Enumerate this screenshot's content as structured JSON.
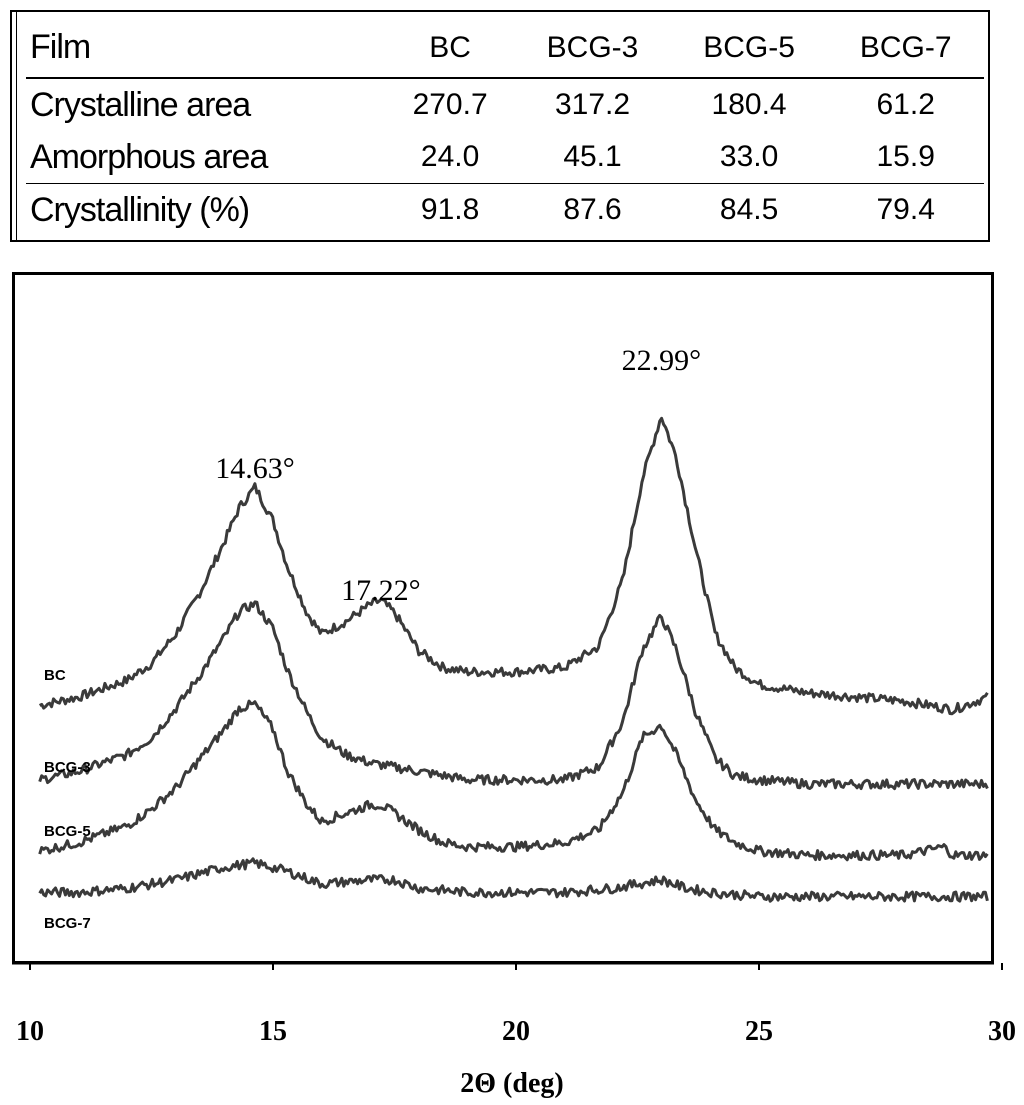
{
  "table": {
    "header": [
      "Film",
      "BC",
      "BCG-3",
      "BCG-5",
      "BCG-7"
    ],
    "rows": [
      {
        "label": "Crystalline area",
        "values": [
          "270.7",
          "317.2",
          "180.4",
          "61.2"
        ]
      },
      {
        "label": "Amorphous area",
        "values": [
          "24.0",
          "45.1",
          "33.0",
          "15.9"
        ]
      },
      {
        "label": "Crystallinity (%)",
        "values": [
          "91.8",
          "87.6",
          "84.5",
          "79.4"
        ]
      }
    ]
  },
  "chart_data": {
    "type": "line",
    "xlabel": "2Θ (deg)",
    "ylabel": "",
    "xlim": [
      10,
      30
    ],
    "x_ticks": [
      "10",
      "15",
      "20",
      "25",
      "30"
    ],
    "grid": false,
    "annotations": [
      {
        "text": "14.63°",
        "x": 14.63
      },
      {
        "text": "17.22°",
        "x": 17.22
      },
      {
        "text": "22.99°",
        "x": 22.99
      }
    ],
    "series": [
      {
        "name": "BC",
        "x": [
          10.2,
          11,
          12,
          12.5,
          13,
          13.5,
          14,
          14.3,
          14.63,
          15,
          15.3,
          15.7,
          16,
          16.5,
          17,
          17.22,
          17.5,
          18,
          18.5,
          19,
          20,
          21,
          21.7,
          22.2,
          22.6,
          22.99,
          23.3,
          23.7,
          24.1,
          24.5,
          25,
          26,
          27,
          28,
          29,
          29.7
        ],
        "y": [
          0.03,
          0.05,
          0.09,
          0.13,
          0.2,
          0.3,
          0.42,
          0.5,
          0.55,
          0.47,
          0.36,
          0.25,
          0.2,
          0.23,
          0.27,
          0.28,
          0.25,
          0.16,
          0.12,
          0.11,
          0.11,
          0.12,
          0.17,
          0.33,
          0.57,
          0.72,
          0.62,
          0.4,
          0.2,
          0.12,
          0.08,
          0.06,
          0.05,
          0.04,
          0.02,
          0.05
        ]
      },
      {
        "name": "BCG-3",
        "x": [
          10.2,
          11,
          12,
          12.5,
          13,
          13.5,
          14,
          14.3,
          14.63,
          15,
          15.3,
          15.7,
          16,
          16.5,
          17,
          17.5,
          18,
          18.5,
          19,
          20,
          21,
          21.7,
          22.2,
          22.6,
          22.99,
          23.3,
          23.7,
          24.1,
          24.5,
          25,
          26,
          27,
          28,
          29,
          29.7
        ],
        "y": [
          0.06,
          0.08,
          0.12,
          0.16,
          0.23,
          0.31,
          0.4,
          0.46,
          0.48,
          0.42,
          0.32,
          0.22,
          0.16,
          0.12,
          0.1,
          0.09,
          0.08,
          0.07,
          0.06,
          0.06,
          0.06,
          0.09,
          0.2,
          0.37,
          0.45,
          0.37,
          0.22,
          0.11,
          0.07,
          0.06,
          0.05,
          0.05,
          0.05,
          0.05,
          0.05
        ]
      },
      {
        "name": "BCG-5",
        "x": [
          10.2,
          11,
          12,
          12.5,
          13,
          13.5,
          14,
          14.3,
          14.63,
          15,
          15.3,
          15.7,
          16,
          16.5,
          17,
          17.22,
          17.5,
          18,
          18.5,
          19,
          20,
          21,
          21.7,
          22.2,
          22.6,
          22.99,
          23.3,
          23.7,
          24.1,
          24.5,
          25,
          26,
          27,
          28,
          28.8,
          29,
          29.7
        ],
        "y": [
          0.05,
          0.07,
          0.11,
          0.15,
          0.2,
          0.27,
          0.34,
          0.39,
          0.4,
          0.34,
          0.24,
          0.16,
          0.12,
          0.14,
          0.16,
          0.16,
          0.14,
          0.1,
          0.07,
          0.06,
          0.06,
          0.07,
          0.1,
          0.19,
          0.32,
          0.35,
          0.28,
          0.17,
          0.1,
          0.07,
          0.05,
          0.04,
          0.04,
          0.04,
          0.06,
          0.04,
          0.04
        ]
      },
      {
        "name": "BCG-7",
        "x": [
          10.2,
          11,
          12,
          13,
          14,
          14.63,
          15.3,
          16,
          17,
          17.5,
          18,
          19,
          20,
          21,
          22,
          22.5,
          22.99,
          23.5,
          24,
          25,
          26,
          27,
          28,
          29,
          29.7
        ],
        "y": [
          0.03,
          0.03,
          0.04,
          0.06,
          0.09,
          0.1,
          0.08,
          0.05,
          0.06,
          0.06,
          0.04,
          0.03,
          0.03,
          0.03,
          0.04,
          0.05,
          0.06,
          0.04,
          0.03,
          0.02,
          0.02,
          0.02,
          0.02,
          0.02,
          0.02
        ]
      }
    ]
  }
}
